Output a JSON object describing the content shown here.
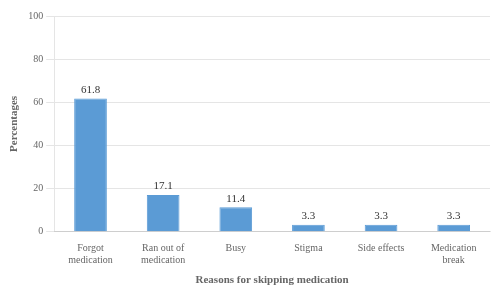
{
  "chart_data": {
    "type": "bar",
    "categories": [
      "Forgot\nmedication",
      "Ran out of\nmedication",
      "Busy",
      "Stigma",
      "Side effects",
      "Medication\nbreak"
    ],
    "values": [
      61.8,
      17.1,
      11.4,
      3.3,
      3.3,
      3.3
    ],
    "color": "#5b9bd5",
    "xlabel": "Reasons for skipping medication",
    "ylabel": "Percentages",
    "ylim": [
      0,
      100
    ],
    "yticks": [
      0,
      20,
      40,
      60,
      80,
      100
    ],
    "grid": true,
    "data_labels": true
  }
}
